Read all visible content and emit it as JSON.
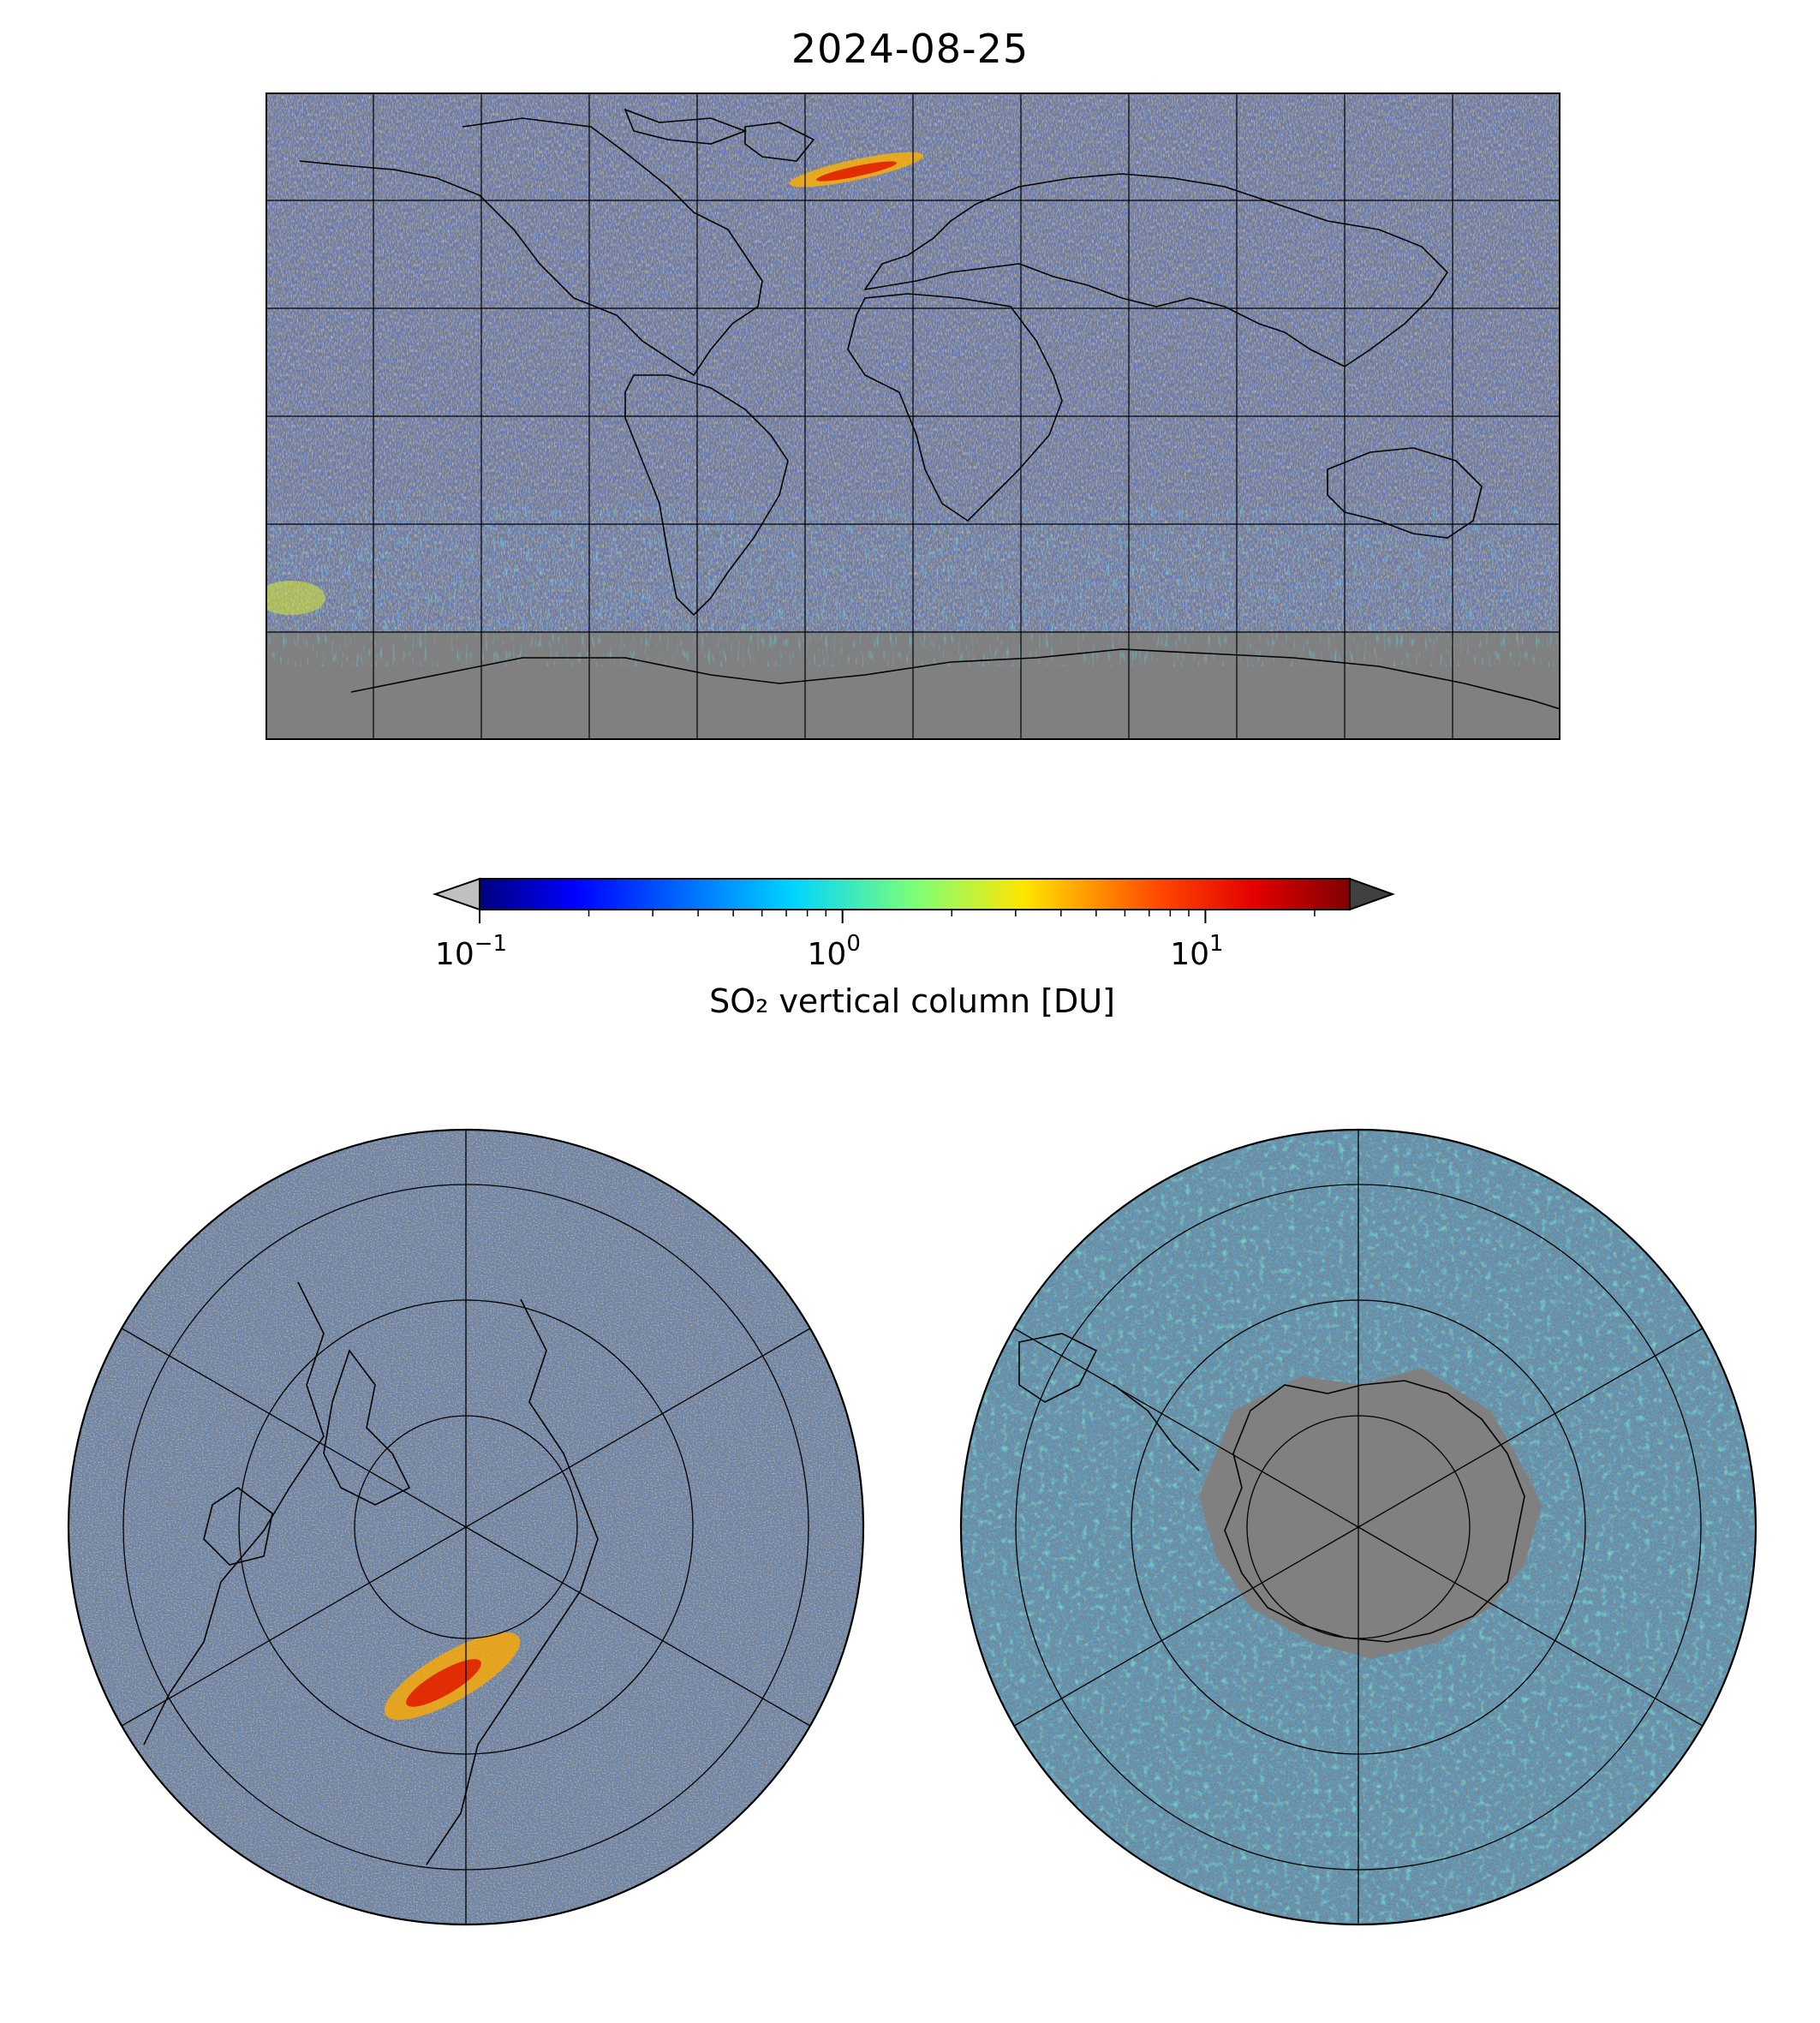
{
  "title": "2024-08-25",
  "colorbar": {
    "label": "SO₂ vertical column [DU]",
    "ticks": [
      {
        "base": "10",
        "exp": "−1",
        "value": 0.1
      },
      {
        "base": "10",
        "exp": "0",
        "value": 1
      },
      {
        "base": "10",
        "exp": "1",
        "value": 10
      }
    ],
    "range": [
      0.1,
      25
    ],
    "scale": "log",
    "colormap": "jet",
    "under_color": "#c0c0c0",
    "over_color": "#404040",
    "extend": "both"
  },
  "maps": {
    "background_color": "#808080",
    "world": {
      "projection": "plate-carree",
      "grid_lon_step": 30,
      "grid_lat_step": 30
    },
    "north": {
      "projection": "north-polar-stereographic"
    },
    "south": {
      "projection": "south-polar-stereographic"
    }
  },
  "colors": {
    "no_data": "#808080",
    "below_range": "#c0c0c0",
    "coastline": "#000000",
    "gridline": "#000000"
  }
}
